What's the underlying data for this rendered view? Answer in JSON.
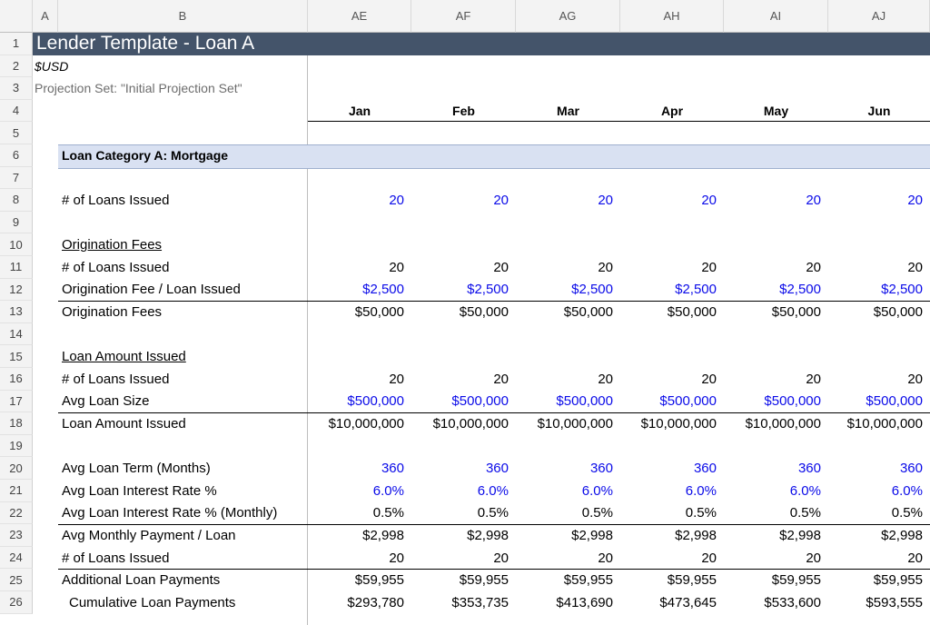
{
  "column_headers": [
    "A",
    "B",
    "AE",
    "AF",
    "AG",
    "AH",
    "AI",
    "AJ"
  ],
  "title": "Lender Template - Loan A",
  "currency": "$USD",
  "projection_set": "Projection Set: \"Initial Projection Set\"",
  "months": [
    "Jan",
    "Feb",
    "Mar",
    "Apr",
    "May",
    "Jun"
  ],
  "category_title": "Loan Category A: Mortgage",
  "rows": {
    "loans_issued_input": {
      "label": "# of Loans Issued",
      "values": [
        "20",
        "20",
        "20",
        "20",
        "20",
        "20"
      ]
    },
    "origination_header": "Origination Fees",
    "orig_loans_issued": {
      "label": "# of Loans Issued",
      "values": [
        "20",
        "20",
        "20",
        "20",
        "20",
        "20"
      ]
    },
    "orig_fee_per_loan": {
      "label": "Origination Fee / Loan Issued",
      "values": [
        "$2,500",
        "$2,500",
        "$2,500",
        "$2,500",
        "$2,500",
        "$2,500"
      ]
    },
    "orig_fees": {
      "label": "Origination Fees",
      "values": [
        "$50,000",
        "$50,000",
        "$50,000",
        "$50,000",
        "$50,000",
        "$50,000"
      ]
    },
    "loan_amount_header": "Loan Amount Issued",
    "amt_loans_issued": {
      "label": "# of Loans Issued",
      "values": [
        "20",
        "20",
        "20",
        "20",
        "20",
        "20"
      ]
    },
    "avg_loan_size": {
      "label": "Avg Loan Size",
      "values": [
        "$500,000",
        "$500,000",
        "$500,000",
        "$500,000",
        "$500,000",
        "$500,000"
      ]
    },
    "loan_amount_issued": {
      "label": "Loan Amount Issued",
      "values": [
        "$10,000,000",
        "$10,000,000",
        "$10,000,000",
        "$10,000,000",
        "$10,000,000",
        "$10,000,000"
      ]
    },
    "avg_loan_term": {
      "label": "Avg Loan Term (Months)",
      "values": [
        "360",
        "360",
        "360",
        "360",
        "360",
        "360"
      ]
    },
    "avg_interest_rate": {
      "label": "Avg Loan Interest Rate %",
      "values": [
        "6.0%",
        "6.0%",
        "6.0%",
        "6.0%",
        "6.0%",
        "6.0%"
      ]
    },
    "avg_interest_rate_monthly": {
      "label": "Avg Loan Interest Rate % (Monthly)",
      "values": [
        "0.5%",
        "0.5%",
        "0.5%",
        "0.5%",
        "0.5%",
        "0.5%"
      ]
    },
    "avg_monthly_payment": {
      "label": "Avg Monthly Payment / Loan",
      "values": [
        "$2,998",
        "$2,998",
        "$2,998",
        "$2,998",
        "$2,998",
        "$2,998"
      ]
    },
    "pay_loans_issued": {
      "label": "# of Loans Issued",
      "values": [
        "20",
        "20",
        "20",
        "20",
        "20",
        "20"
      ]
    },
    "additional_payments": {
      "label": "Additional Loan Payments",
      "values": [
        "$59,955",
        "$59,955",
        "$59,955",
        "$59,955",
        "$59,955",
        "$59,955"
      ]
    },
    "cumulative_payments": {
      "label": "Cumulative Loan Payments",
      "values": [
        "$293,780",
        "$353,735",
        "$413,690",
        "$473,645",
        "$533,600",
        "$593,555"
      ]
    }
  }
}
